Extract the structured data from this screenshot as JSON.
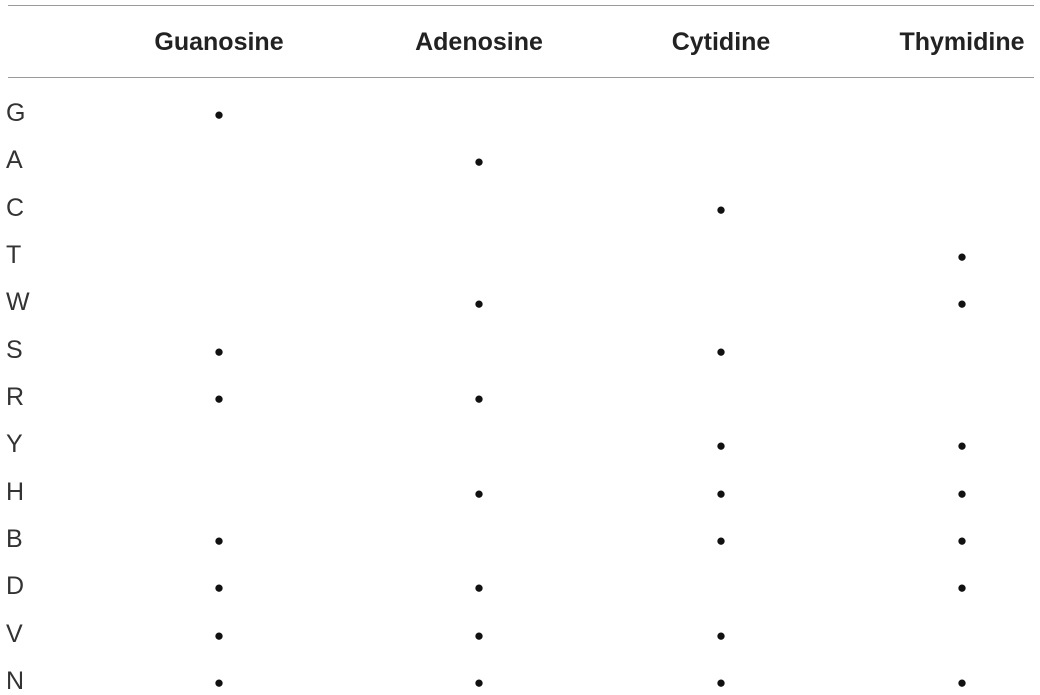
{
  "table": {
    "columns": [
      "Guanosine",
      "Adenosine",
      "Cytidine",
      "Thymidine"
    ],
    "rows": [
      {
        "label": "G",
        "cells": [
          "●",
          null,
          null,
          null
        ]
      },
      {
        "label": "A",
        "cells": [
          null,
          "●",
          null,
          null
        ]
      },
      {
        "label": "C",
        "cells": [
          null,
          null,
          "●",
          null
        ]
      },
      {
        "label": "T",
        "cells": [
          null,
          null,
          null,
          "●"
        ]
      },
      {
        "label": "W",
        "cells": [
          null,
          "●",
          null,
          "●"
        ]
      },
      {
        "label": "S",
        "cells": [
          "●",
          null,
          "●",
          null
        ]
      },
      {
        "label": "R",
        "cells": [
          "●",
          "●",
          null,
          null
        ]
      },
      {
        "label": "Y",
        "cells": [
          null,
          null,
          "●",
          "●"
        ]
      },
      {
        "label": "H",
        "cells": [
          null,
          "●",
          "●",
          "●"
        ]
      },
      {
        "label": "B",
        "cells": [
          "●",
          null,
          "●",
          "●"
        ]
      },
      {
        "label": "D",
        "cells": [
          "●",
          "●",
          null,
          "●"
        ]
      },
      {
        "label": "V",
        "cells": [
          "●",
          "●",
          "●",
          null
        ]
      },
      {
        "label": "N",
        "cells": [
          "●",
          "●",
          "●",
          "●"
        ]
      }
    ]
  }
}
